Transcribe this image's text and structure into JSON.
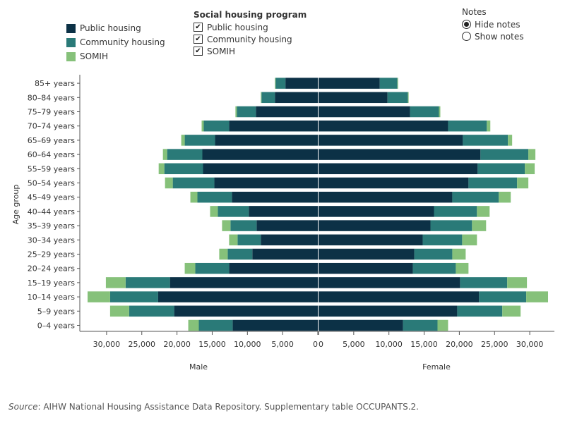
{
  "colors": {
    "public": "#0c3146",
    "community": "#2a7a78",
    "somih": "#86c17a",
    "axis": "#555555",
    "text": "#333333"
  },
  "legend": {
    "items": [
      {
        "key": "public",
        "label": "Public housing",
        "color": "#0c3146"
      },
      {
        "key": "community",
        "label": "Community housing",
        "color": "#2a7a78"
      },
      {
        "key": "somih",
        "label": "SOMIH",
        "color": "#86c17a"
      }
    ]
  },
  "program_filter": {
    "title": "Social housing program",
    "options": [
      {
        "label": "Public housing",
        "checked": true
      },
      {
        "label": "Community housing",
        "checked": true
      },
      {
        "label": "SOMIH",
        "checked": true
      }
    ]
  },
  "notes_toggle": {
    "title": "Notes",
    "options": [
      {
        "label": "Hide notes",
        "selected": true
      },
      {
        "label": "Show notes",
        "selected": false
      }
    ]
  },
  "source": {
    "prefix": "Source",
    "text": ": AIHW National Housing Assistance Data Repository. Supplementary table OCCUPANTS.2."
  },
  "chart_data": {
    "type": "bar",
    "orientation": "horizontal",
    "stacked": true,
    "ylabel": "Age group",
    "categories": [
      "85+ years",
      "80–84 years",
      "75–79 years",
      "70–74 years",
      "65–69 years",
      "60–64 years",
      "55–59 years",
      "50–54 years",
      "45–49 years",
      "40–44 years",
      "35–39 years",
      "30–34 years",
      "25–29 years",
      "20–24 years",
      "15–19 years",
      "10–14 years",
      "5–9 years",
      "0–4 years"
    ],
    "panels": [
      {
        "name": "Male",
        "xlim": [
          0,
          33000
        ],
        "ticks": [
          0,
          5000,
          10000,
          15000,
          20000,
          25000,
          30000
        ],
        "tick_labels": [
          "0",
          "5,000",
          "10,000",
          "15,000",
          "20,000",
          "25,000",
          "30,000"
        ],
        "series": [
          {
            "name": "Public housing",
            "key": "public",
            "values": [
              4600,
              6100,
              8800,
              12600,
              14600,
              16400,
              16300,
              14700,
              12200,
              9800,
              8700,
              8100,
              9300,
              12600,
              21000,
              22700,
              20400,
              12100
            ]
          },
          {
            "name": "Community housing",
            "key": "community",
            "values": [
              1400,
              1900,
              2700,
              3600,
              4300,
              5000,
              5500,
              5900,
              4900,
              4400,
              3700,
              3300,
              3500,
              4800,
              6300,
              6800,
              6400,
              4800
            ]
          },
          {
            "name": "SOMIH",
            "key": "somih",
            "values": [
              100,
              100,
              200,
              300,
              500,
              600,
              800,
              1100,
              1000,
              1100,
              1200,
              1200,
              1200,
              1500,
              2800,
              3200,
              2700,
              1500
            ]
          }
        ]
      },
      {
        "name": "Female",
        "xlim": [
          0,
          33000
        ],
        "ticks": [
          0,
          5000,
          10000,
          15000,
          20000,
          25000,
          30000
        ],
        "tick_labels": [
          "0",
          "5,000",
          "10,000",
          "15,000",
          "20,000",
          "25,000",
          "30,000"
        ],
        "series": [
          {
            "name": "Public housing",
            "key": "public",
            "values": [
              8700,
              9800,
              13000,
              18400,
              20500,
              23000,
              22600,
              21300,
              19000,
              16400,
              15900,
              14800,
              13600,
              13400,
              20100,
              22800,
              19700,
              12000
            ]
          },
          {
            "name": "Community housing",
            "key": "community",
            "values": [
              2500,
              2900,
              4100,
              5500,
              6400,
              6800,
              6700,
              6900,
              6600,
              6100,
              5900,
              5600,
              5400,
              6100,
              6700,
              6700,
              6400,
              4900
            ]
          },
          {
            "name": "SOMIH",
            "key": "somih",
            "values": [
              100,
              100,
              200,
              500,
              600,
              1000,
              1400,
              1600,
              1700,
              1800,
              2000,
              2100,
              1900,
              1800,
              2800,
              3100,
              2600,
              1500
            ]
          }
        ]
      }
    ],
    "grid": false,
    "legend_position": "top-left"
  }
}
